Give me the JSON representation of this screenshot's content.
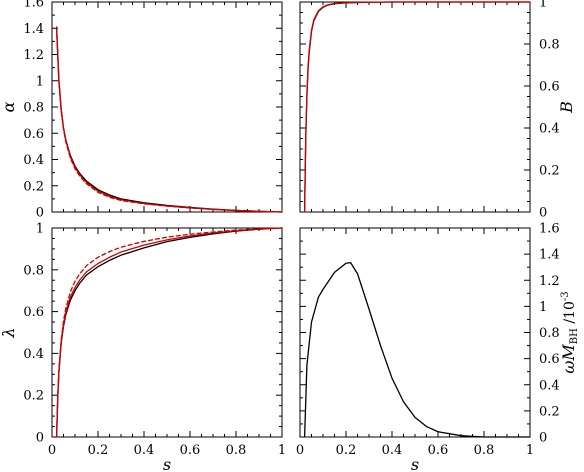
{
  "chart_data": [
    {
      "type": "line",
      "panel": "top-left",
      "xlabel": "",
      "ylabel": "α",
      "xlim": [
        0,
        1
      ],
      "ylim": [
        0,
        1.6
      ],
      "xticks": [
        "0",
        "0.2",
        "0.4",
        "0.6",
        "0.8",
        "1"
      ],
      "yticks": [
        "0",
        "0.2",
        "0.4",
        "0.6",
        "0.8",
        "1",
        "1.2",
        "1.4",
        "1.6"
      ],
      "y_tick_side": "left",
      "show_x_tick_labels": false,
      "series": [
        {
          "style": "solid",
          "color": "#000000",
          "x": [
            0.02,
            0.025,
            0.03,
            0.04,
            0.05,
            0.06,
            0.08,
            0.1,
            0.12,
            0.15,
            0.2,
            0.25,
            0.3,
            0.4,
            0.5,
            0.6,
            0.7,
            0.8,
            0.9,
            1.0
          ],
          "y": [
            1.4,
            1.2,
            1.0,
            0.78,
            0.64,
            0.55,
            0.43,
            0.35,
            0.295,
            0.235,
            0.17,
            0.13,
            0.1,
            0.07,
            0.05,
            0.035,
            0.022,
            0.012,
            0.005,
            0.0
          ]
        },
        {
          "style": "solid",
          "color": "#cc0000",
          "x": [
            0.02,
            0.025,
            0.03,
            0.04,
            0.05,
            0.06,
            0.08,
            0.1,
            0.12,
            0.15,
            0.2,
            0.25,
            0.3,
            0.4,
            0.5,
            0.6,
            0.7,
            0.8,
            0.9,
            1.0
          ],
          "y": [
            1.41,
            1.21,
            1.01,
            0.785,
            0.64,
            0.545,
            0.42,
            0.34,
            0.285,
            0.225,
            0.16,
            0.12,
            0.093,
            0.065,
            0.046,
            0.032,
            0.02,
            0.011,
            0.005,
            0.0
          ]
        },
        {
          "style": "dashed",
          "color": "#cc0000",
          "x": [
            0.02,
            0.025,
            0.03,
            0.04,
            0.05,
            0.06,
            0.08,
            0.1,
            0.12,
            0.15,
            0.2,
            0.25,
            0.3,
            0.4,
            0.5,
            0.6,
            0.7,
            0.8,
            0.9,
            1.0
          ],
          "y": [
            1.4,
            1.19,
            0.99,
            0.77,
            0.63,
            0.535,
            0.41,
            0.33,
            0.275,
            0.215,
            0.15,
            0.112,
            0.088,
            0.062,
            0.045,
            0.031,
            0.02,
            0.011,
            0.005,
            0.0
          ]
        }
      ]
    },
    {
      "type": "line",
      "panel": "top-right",
      "xlabel": "",
      "ylabel": "B",
      "xlim": [
        0,
        1
      ],
      "ylim": [
        0,
        1
      ],
      "xticks": [
        "0",
        "0.2",
        "0.4",
        "0.6",
        "0.8",
        "1"
      ],
      "yticks": [
        "0",
        "0.2",
        "0.4",
        "0.6",
        "0.8",
        "1"
      ],
      "y_tick_side": "right",
      "show_x_tick_labels": false,
      "series": [
        {
          "style": "solid",
          "color": "#000000",
          "x": [
            0.02,
            0.025,
            0.03,
            0.035,
            0.04,
            0.05,
            0.06,
            0.08,
            0.1,
            0.12,
            0.15,
            0.2,
            0.3,
            0.4,
            0.6,
            0.8,
            1.0
          ],
          "y": [
            0.0,
            0.35,
            0.55,
            0.68,
            0.76,
            0.86,
            0.91,
            0.955,
            0.975,
            0.985,
            0.992,
            0.996,
            0.999,
            1.0,
            1.0,
            1.0,
            1.0
          ]
        },
        {
          "style": "solid",
          "color": "#cc0000",
          "x": [
            0.02,
            0.025,
            0.03,
            0.035,
            0.04,
            0.05,
            0.06,
            0.08,
            0.1,
            0.12,
            0.15,
            0.2,
            0.3,
            0.4,
            0.6,
            0.8,
            1.0
          ],
          "y": [
            0.0,
            0.36,
            0.56,
            0.69,
            0.77,
            0.865,
            0.915,
            0.958,
            0.977,
            0.986,
            0.993,
            0.997,
            0.999,
            1.0,
            1.0,
            1.0,
            1.0
          ]
        }
      ]
    },
    {
      "type": "line",
      "panel": "bottom-left",
      "xlabel": "s",
      "ylabel": "λ",
      "xlim": [
        0,
        1
      ],
      "ylim": [
        0,
        1
      ],
      "xticks": [
        "0",
        "0.2",
        "0.4",
        "0.6",
        "0.8",
        "1"
      ],
      "yticks": [
        "0",
        "0.2",
        "0.4",
        "0.6",
        "0.8",
        "1"
      ],
      "y_tick_side": "left",
      "show_x_tick_labels": true,
      "series": [
        {
          "style": "solid",
          "color": "#000000",
          "x": [
            0.02,
            0.025,
            0.03,
            0.04,
            0.05,
            0.06,
            0.08,
            0.1,
            0.12,
            0.15,
            0.2,
            0.25,
            0.3,
            0.4,
            0.5,
            0.6,
            0.7,
            0.8,
            0.9,
            1.0
          ],
          "y": [
            0.0,
            0.19,
            0.31,
            0.45,
            0.53,
            0.585,
            0.655,
            0.7,
            0.735,
            0.775,
            0.815,
            0.845,
            0.87,
            0.905,
            0.935,
            0.955,
            0.972,
            0.985,
            0.994,
            1.0
          ]
        },
        {
          "style": "solid",
          "color": "#cc0000",
          "x": [
            0.02,
            0.025,
            0.03,
            0.04,
            0.05,
            0.06,
            0.08,
            0.1,
            0.12,
            0.15,
            0.2,
            0.25,
            0.3,
            0.4,
            0.5,
            0.6,
            0.7,
            0.8,
            0.9,
            1.0
          ],
          "y": [
            0.0,
            0.19,
            0.315,
            0.455,
            0.54,
            0.595,
            0.67,
            0.715,
            0.75,
            0.79,
            0.83,
            0.86,
            0.885,
            0.918,
            0.943,
            0.962,
            0.976,
            0.987,
            0.995,
            1.0
          ]
        },
        {
          "style": "dashed",
          "color": "#cc0000",
          "x": [
            0.02,
            0.025,
            0.03,
            0.04,
            0.05,
            0.06,
            0.08,
            0.1,
            0.12,
            0.15,
            0.2,
            0.25,
            0.3,
            0.4,
            0.5,
            0.6,
            0.7,
            0.8,
            0.9,
            1.0
          ],
          "y": [
            0.0,
            0.19,
            0.32,
            0.465,
            0.555,
            0.615,
            0.695,
            0.745,
            0.78,
            0.82,
            0.86,
            0.887,
            0.908,
            0.936,
            0.956,
            0.97,
            0.981,
            0.99,
            0.996,
            1.0
          ]
        }
      ]
    },
    {
      "type": "line",
      "panel": "bottom-right",
      "xlabel": "s",
      "ylabel": "ωM_BH /10^-3",
      "ylabel_parts": {
        "omega": "ω",
        "m": "M",
        "sub": "BH",
        "scale": " /10",
        "exp": "-3"
      },
      "xlim": [
        0,
        1
      ],
      "ylim": [
        0,
        1.6
      ],
      "xticks": [
        "0",
        "0.2",
        "0.4",
        "0.6",
        "0.8",
        "1"
      ],
      "yticks": [
        "0",
        "0.2",
        "0.4",
        "0.6",
        "0.8",
        "1",
        "1.2",
        "1.4",
        "1.6"
      ],
      "y_tick_side": "right",
      "show_x_tick_labels": true,
      "series": [
        {
          "style": "solid",
          "color": "#000000",
          "x": [
            0.02,
            0.03,
            0.05,
            0.08,
            0.1,
            0.15,
            0.2,
            0.22,
            0.25,
            0.3,
            0.35,
            0.4,
            0.45,
            0.5,
            0.55,
            0.6,
            0.7,
            0.8,
            0.9,
            1.0
          ],
          "y": [
            0.0,
            0.55,
            0.88,
            1.07,
            1.13,
            1.26,
            1.33,
            1.335,
            1.25,
            0.98,
            0.7,
            0.45,
            0.27,
            0.15,
            0.08,
            0.04,
            0.01,
            0.0,
            0.0,
            0.0
          ]
        }
      ]
    }
  ]
}
